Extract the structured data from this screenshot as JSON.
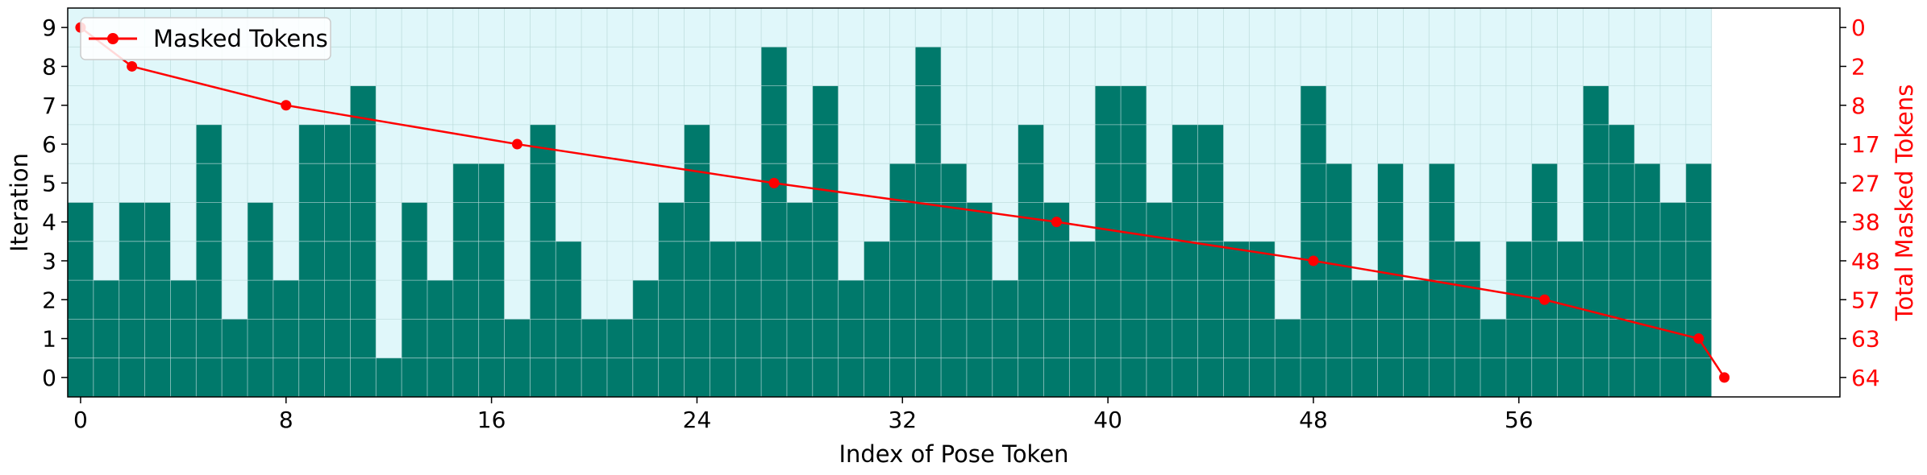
{
  "chart_data": {
    "type": "bar",
    "xlabel": "Index of Pose Token",
    "ylabel": "Iteration",
    "ylabel_right": "Total Masked Tokens",
    "x_ticks": [
      0,
      8,
      16,
      24,
      32,
      40,
      48,
      56
    ],
    "y_ticks": [
      0,
      1,
      2,
      3,
      4,
      5,
      6,
      7,
      8,
      9
    ],
    "right_ticks": [
      {
        "iteration": 9,
        "label": "0"
      },
      {
        "iteration": 8,
        "label": "2"
      },
      {
        "iteration": 7,
        "label": "8"
      },
      {
        "iteration": 6,
        "label": "17"
      },
      {
        "iteration": 5,
        "label": "27"
      },
      {
        "iteration": 4,
        "label": "38"
      },
      {
        "iteration": 3,
        "label": "48"
      },
      {
        "iteration": 2,
        "label": "57"
      },
      {
        "iteration": 1,
        "label": "63"
      },
      {
        "iteration": 0,
        "label": "64"
      }
    ],
    "xlim": [
      -0.5,
      68.5
    ],
    "ylim": [
      -0.5,
      9.5
    ],
    "grid": true,
    "bar_values": [
      4,
      2,
      4,
      4,
      2,
      6,
      1,
      4,
      2,
      6,
      6,
      7,
      0,
      4,
      2,
      5,
      5,
      1,
      6,
      3,
      1,
      1,
      2,
      4,
      6,
      3,
      3,
      8,
      4,
      7,
      2,
      3,
      5,
      8,
      5,
      4,
      2,
      6,
      4,
      3,
      7,
      7,
      4,
      6,
      6,
      3,
      3,
      1,
      7,
      5,
      2,
      5,
      2,
      5,
      3,
      1,
      3,
      5,
      3,
      7,
      6,
      5,
      4,
      5
    ],
    "line_series": {
      "name": "Masked Tokens",
      "x": [
        0,
        2,
        8,
        17,
        27,
        38,
        48,
        57,
        63,
        64
      ],
      "y": [
        9,
        8,
        7,
        6,
        5,
        4,
        3,
        2,
        1,
        0
      ]
    },
    "legend": "top-left",
    "colors": {
      "bar": "#00796b",
      "masked_area": "#e0f7fa",
      "line": "#ff0000",
      "grid": "#b8d8d8"
    }
  }
}
